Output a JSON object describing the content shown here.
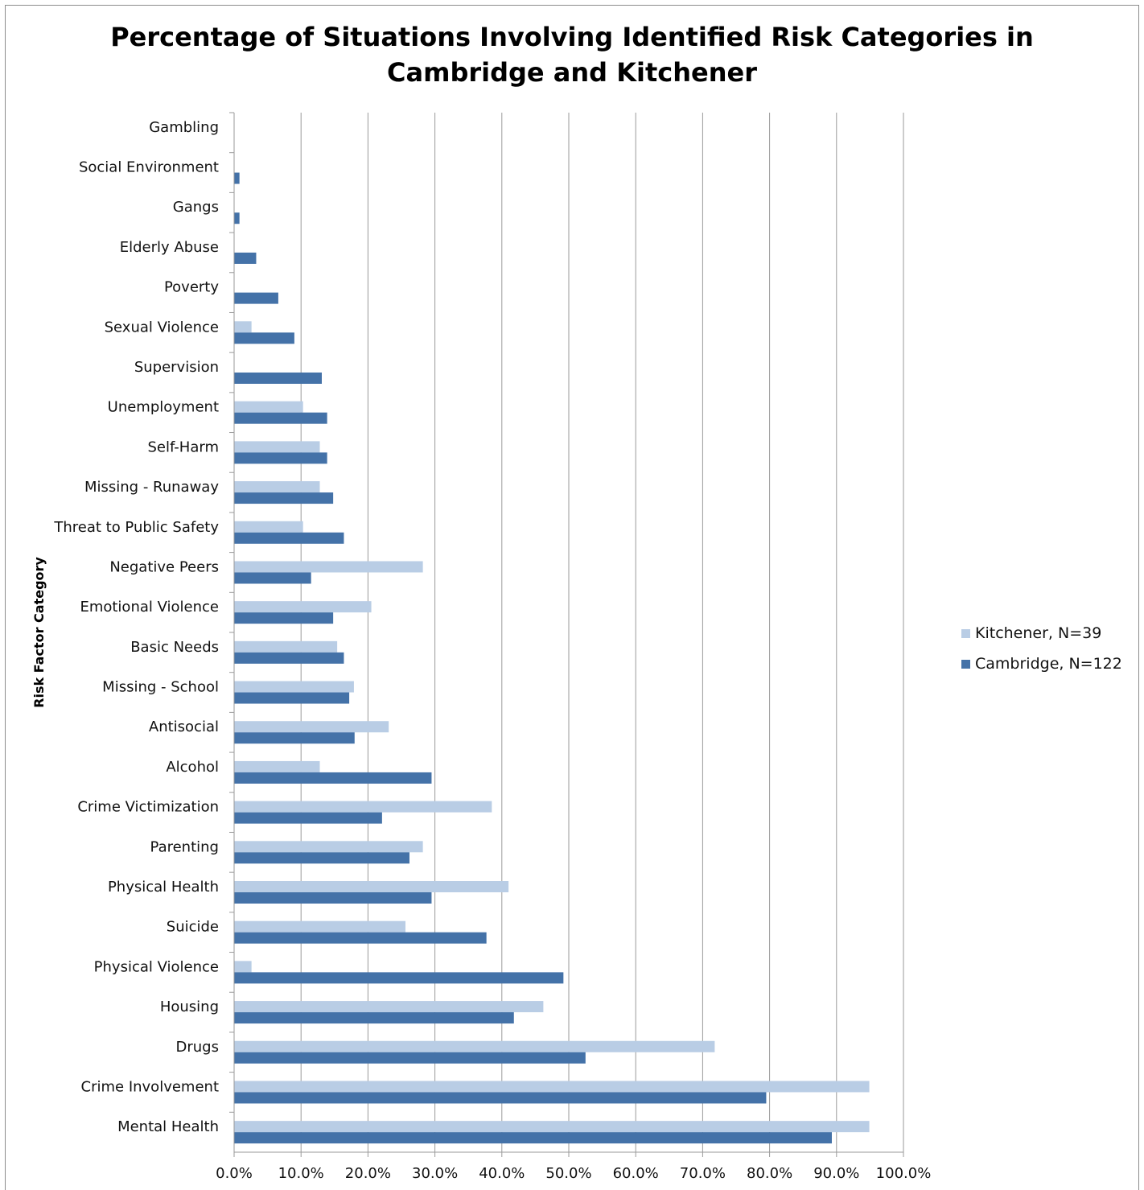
{
  "chart_data": {
    "type": "bar",
    "orientation": "horizontal",
    "title_lines": [
      "Percentage of Situations Involving Identified Risk Categories in",
      "Cambridge and Kitchener"
    ],
    "ylabel": "Risk Factor Category",
    "xlabel": "",
    "xlim": [
      0,
      100
    ],
    "x_ticks": [
      "0.0%",
      "10.0%",
      "20.0%",
      "30.0%",
      "40.0%",
      "50.0%",
      "60.0%",
      "70.0%",
      "80.0%",
      "90.0%",
      "100.0%"
    ],
    "grid": true,
    "legend_position": "right",
    "categories": [
      "Gambling",
      "Social Environment",
      "Gangs",
      "Elderly Abuse",
      "Poverty",
      "Sexual Violence",
      "Supervision",
      "Unemployment",
      "Self-Harm",
      "Missing - Runaway",
      "Threat to Public Safety",
      "Negative Peers",
      "Emotional Violence",
      "Basic Needs",
      "Missing - School",
      "Antisocial",
      "Alcohol",
      "Crime Victimization",
      "Parenting",
      "Physical Health",
      "Suicide",
      "Physical Violence",
      "Housing",
      "Drugs",
      "Crime Involvement",
      "Mental Health"
    ],
    "series": [
      {
        "name": "Kitchener, N=39",
        "color": "#b9cde5",
        "values": [
          0,
          0,
          0,
          0,
          0,
          2.6,
          0,
          10.3,
          12.8,
          12.8,
          10.3,
          28.2,
          20.5,
          15.4,
          17.9,
          23.1,
          12.8,
          38.5,
          28.2,
          41.0,
          25.6,
          2.6,
          46.2,
          71.8,
          94.9,
          94.9
        ]
      },
      {
        "name": "Cambridge, N=122",
        "color": "#4472a8",
        "values": [
          0,
          0.8,
          0.8,
          3.3,
          6.6,
          9.0,
          13.1,
          13.9,
          13.9,
          14.8,
          16.4,
          11.5,
          14.8,
          16.4,
          17.2,
          18.0,
          29.5,
          22.1,
          26.2,
          29.5,
          37.7,
          49.2,
          41.8,
          52.5,
          79.5,
          89.3
        ]
      }
    ]
  }
}
